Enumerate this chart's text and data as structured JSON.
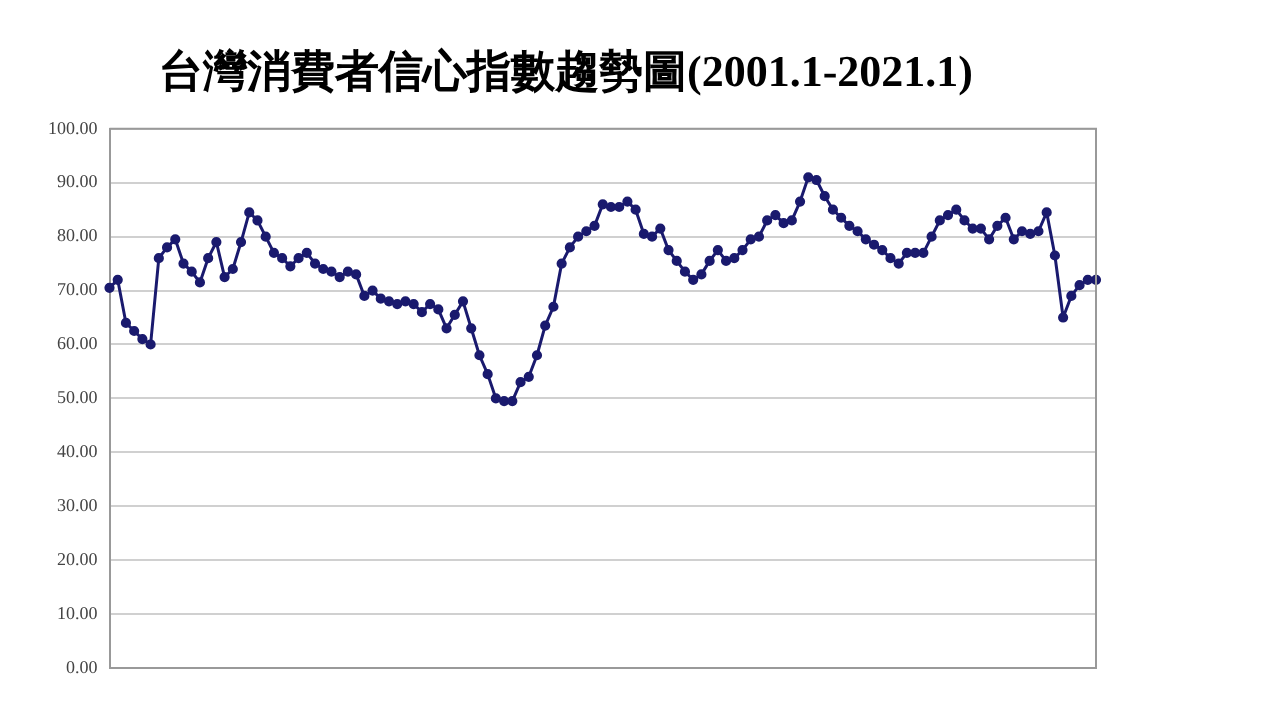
{
  "chart_data": {
    "type": "line",
    "title": "台灣消費者信心指數趨勢圖(2001.1-2021.1)",
    "categories": [
      null,
      null,
      null,
      null,
      null,
      null,
      null,
      null,
      null,
      null,
      null,
      null,
      null,
      null,
      null,
      null,
      null,
      null,
      null,
      null,
      null,
      null,
      null,
      null,
      null,
      null,
      null,
      null,
      null,
      null,
      null,
      null,
      null,
      null,
      null,
      null,
      null,
      null,
      null,
      null,
      null,
      null,
      null,
      null,
      null,
      null,
      null,
      null,
      null,
      null,
      null,
      null,
      null,
      null,
      null,
      null,
      null,
      null,
      null,
      null,
      null,
      null,
      null,
      null,
      null,
      null,
      null,
      null,
      null,
      null,
      null,
      null,
      null,
      null,
      null,
      null,
      null,
      null,
      null,
      null,
      null,
      null,
      null,
      null,
      null,
      null,
      null,
      null,
      null,
      null,
      null,
      null,
      null,
      null,
      null,
      null,
      null,
      null,
      null,
      null,
      null,
      null,
      null,
      null,
      null,
      null,
      null,
      null,
      null,
      null,
      null,
      null,
      null,
      null,
      null,
      null,
      null,
      null,
      null,
      null,
      null
    ],
    "series": [
      {
        "color": "#1a1a6e",
        "values": [
          70.5,
          72,
          64,
          62.5,
          61,
          60,
          76,
          78,
          79.5,
          75,
          73.5,
          71.5,
          76,
          79,
          72.5,
          74,
          79,
          84.5,
          83,
          80,
          77,
          76,
          74.5,
          76,
          77,
          75,
          74,
          73.5,
          72.5,
          73.5,
          73,
          69,
          70,
          68.5,
          68,
          67.5,
          68,
          67.5,
          66,
          67.5,
          66.5,
          63,
          65.5,
          68,
          63,
          58,
          54.5,
          50,
          49.5,
          49.5,
          53,
          54,
          58,
          63.5,
          67,
          75,
          78,
          80,
          81,
          82,
          86,
          85.5,
          85.5,
          86.5,
          85,
          80.5,
          80,
          81.5,
          77.5,
          75.5,
          73.5,
          72,
          73,
          75.5,
          77.5,
          75.5,
          76,
          77.5,
          79.5,
          80,
          83,
          84,
          82.5,
          83,
          86.5,
          91,
          90.5,
          87.5,
          85,
          83.5,
          82,
          81,
          79.5,
          78.5,
          77.5,
          76,
          75,
          77,
          77,
          77,
          80,
          83,
          84,
          85,
          83,
          81.5,
          81.5,
          79.5,
          82,
          83.5,
          79.5,
          81,
          80.5,
          81,
          84.5,
          76.5,
          65,
          69,
          71,
          72,
          72
        ]
      }
    ],
    "ylim": [
      0,
      100
    ],
    "yticks": [
      {
        "value": 0,
        "label": "0.00"
      },
      {
        "value": 10,
        "label": "10.00"
      },
      {
        "value": 20,
        "label": "20.00"
      },
      {
        "value": 30,
        "label": "30.00"
      },
      {
        "value": 40,
        "label": "40.00"
      },
      {
        "value": 50,
        "label": "50.00"
      },
      {
        "value": 60,
        "label": "60.00"
      },
      {
        "value": 70,
        "label": "70.00"
      },
      {
        "value": 80,
        "label": "80.00"
      },
      {
        "value": 90,
        "label": "90.00"
      },
      {
        "value": 100,
        "label": "100.00"
      }
    ],
    "grid": "y",
    "legend": false,
    "marker": "circle",
    "line_style": "solid",
    "tick_labels": "y"
  }
}
